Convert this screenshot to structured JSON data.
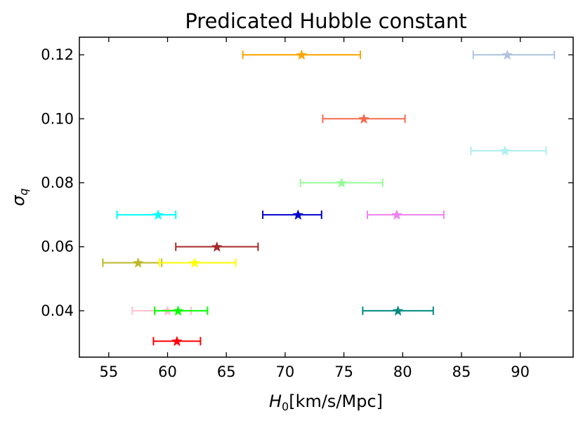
{
  "chart_data": {
    "type": "scatter",
    "title": "Predicated Hubble constant",
    "xlabel": "H",
    "xlabel_sub": "0",
    "xlabel_unit": "[km/s/Mpc]",
    "ylabel": "σ",
    "ylabel_sub": "q",
    "xlim": [
      52.5,
      94.5
    ],
    "ylim": [
      0.0255,
      0.1255
    ],
    "xticks": [
      55,
      60,
      65,
      70,
      75,
      80,
      85,
      90
    ],
    "xtick_labels": [
      "55",
      "60",
      "65",
      "70",
      "75",
      "80",
      "85",
      "90"
    ],
    "yticks": [
      0.04,
      0.06,
      0.08,
      0.1,
      0.12
    ],
    "ytick_labels": [
      "0.04",
      "0.06",
      "0.08",
      "0.10",
      "0.12"
    ],
    "marker": "star",
    "points": [
      {
        "x": 71.4,
        "y": 0.12,
        "xmin": 66.4,
        "xmax": 76.4,
        "color": "#FFA500"
      },
      {
        "x": 88.9,
        "y": 0.12,
        "xmin": 86.0,
        "xmax": 92.9,
        "color": "#B0C4DE"
      },
      {
        "x": 76.7,
        "y": 0.1,
        "xmin": 73.2,
        "xmax": 80.2,
        "color": "#F36C50"
      },
      {
        "x": 88.7,
        "y": 0.09,
        "xmin": 85.8,
        "xmax": 92.2,
        "color": "#AFEEEE"
      },
      {
        "x": 74.8,
        "y": 0.08,
        "xmin": 71.3,
        "xmax": 78.3,
        "color": "#98FB98"
      },
      {
        "x": 59.2,
        "y": 0.07,
        "xmin": 55.7,
        "xmax": 60.7,
        "color": "#00FFFF"
      },
      {
        "x": 71.1,
        "y": 0.07,
        "xmin": 68.1,
        "xmax": 73.1,
        "color": "#0000CD"
      },
      {
        "x": 79.5,
        "y": 0.07,
        "xmin": 77.0,
        "xmax": 83.5,
        "color": "#EE82EE"
      },
      {
        "x": 64.2,
        "y": 0.06,
        "xmin": 60.7,
        "xmax": 67.7,
        "color": "#A52A2A"
      },
      {
        "x": 57.5,
        "y": 0.055,
        "xmin": 54.5,
        "xmax": 59.5,
        "color": "#BDB828"
      },
      {
        "x": 62.3,
        "y": 0.055,
        "xmin": 59.3,
        "xmax": 65.8,
        "color": "#FFFF00"
      },
      {
        "x": 60.0,
        "y": 0.04,
        "xmin": 57.0,
        "xmax": 62.0,
        "color": "#FFC0CB"
      },
      {
        "x": 60.9,
        "y": 0.04,
        "xmin": 58.9,
        "xmax": 63.4,
        "color": "#00FF00"
      },
      {
        "x": 79.6,
        "y": 0.04,
        "xmin": 76.6,
        "xmax": 82.6,
        "color": "#008B80"
      },
      {
        "x": 60.8,
        "y": 0.0305,
        "xmin": 58.8,
        "xmax": 62.8,
        "color": "#FF0000"
      }
    ]
  }
}
